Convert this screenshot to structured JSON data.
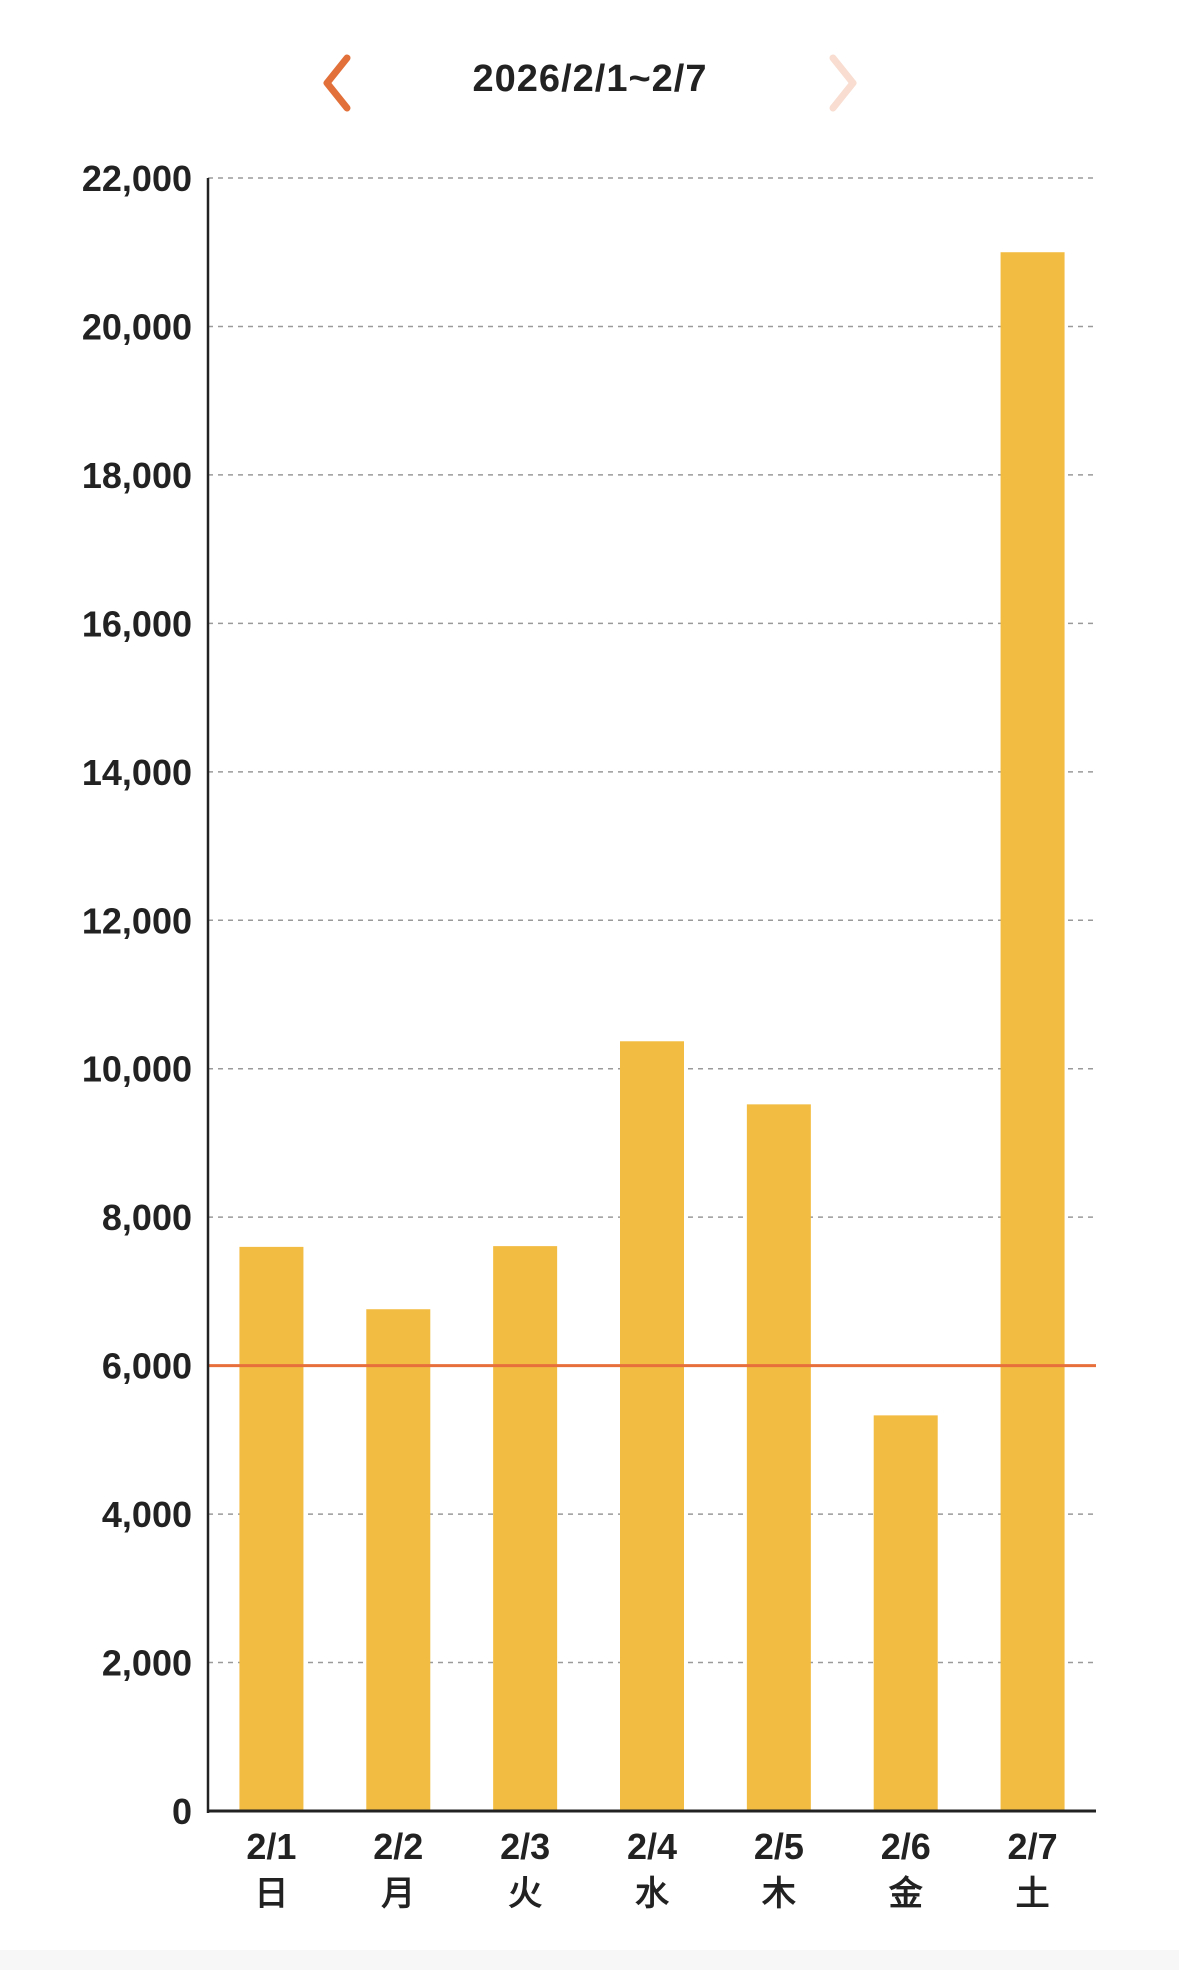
{
  "header": {
    "title": "2026/2/1~2/7",
    "prev_icon": "chevron-left-icon",
    "next_icon": "chevron-right-icon"
  },
  "colors": {
    "bar": "#F2BC42",
    "target_line": "#E76F3C",
    "nav_active": "#E2703A",
    "nav_inactive": "#F8DDD0",
    "grid": "#9a9a9a",
    "axis": "#222222"
  },
  "chart_data": {
    "type": "bar",
    "categories": [
      "2/1",
      "2/2",
      "2/3",
      "2/4",
      "2/5",
      "2/6",
      "2/7"
    ],
    "weekdays": [
      "日",
      "月",
      "火",
      "水",
      "木",
      "金",
      "土"
    ],
    "values": [
      7600,
      6760,
      7610,
      10370,
      9520,
      5330,
      21000
    ],
    "y_ticks": [
      "0",
      "2,000",
      "4,000",
      "6,000",
      "8,000",
      "10,000",
      "12,000",
      "14,000",
      "16,000",
      "18,000",
      "20,000",
      "22,000"
    ],
    "ylim": [
      0,
      22000
    ],
    "target_value": 6000,
    "grid": true
  }
}
